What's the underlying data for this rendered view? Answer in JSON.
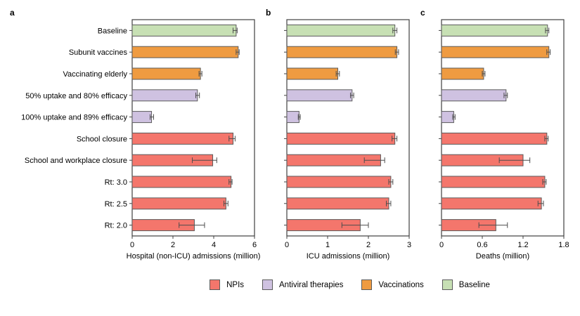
{
  "figure": {
    "background": "#ffffff",
    "axis_color": "#3f3f3f",
    "bar_border_color": "#5b5b5b",
    "error_bar_color": "#4d4d4d"
  },
  "legend": {
    "position": "bottom",
    "items": [
      {
        "label": "NPIs",
        "group": "npi",
        "color": "#F4766C"
      },
      {
        "label": "Antiviral therapies",
        "group": "antiviral",
        "color": "#CFC2E1"
      },
      {
        "label": "Vaccinations",
        "group": "vaccination",
        "color": "#EF9B41"
      },
      {
        "label": "Baseline",
        "group": "baseline",
        "color": "#C7E0B4"
      }
    ]
  },
  "chart_data": [
    {
      "panel_label": "a",
      "type": "bar",
      "orientation": "horizontal",
      "title": "",
      "xlabel": "Hospital (non-ICU) admissions (million)",
      "xlim": [
        0,
        6
      ],
      "xticks": [
        "0",
        "2",
        "4",
        "6"
      ],
      "grid": false,
      "show_category_labels": true,
      "categories": [
        "Baseline",
        "Subunit vaccines",
        "Vaccinating elderly",
        "50% uptake and 80% efficacy",
        "100% uptake and 89% efficacy",
        "School closure",
        "School and workplace closure",
        "Rt: 3.0",
        "Rt: 2.5",
        "Rt: 2.0"
      ],
      "groups": [
        "baseline",
        "vaccination",
        "vaccination",
        "antiviral",
        "antiviral",
        "npi",
        "npi",
        "npi",
        "npi",
        "npi"
      ],
      "values": [
        5.1,
        5.2,
        3.35,
        3.2,
        0.95,
        4.95,
        3.95,
        4.85,
        4.6,
        3.05
      ],
      "error_low": [
        4.95,
        5.1,
        3.28,
        3.12,
        0.88,
        4.75,
        2.95,
        4.75,
        4.5,
        2.3
      ],
      "error_high": [
        5.15,
        5.25,
        3.42,
        3.3,
        1.05,
        5.05,
        4.15,
        4.9,
        4.7,
        3.55
      ]
    },
    {
      "panel_label": "b",
      "type": "bar",
      "orientation": "horizontal",
      "title": "",
      "xlabel": "ICU admissions (million)",
      "xlim": [
        0,
        3
      ],
      "xticks": [
        "0",
        "1",
        "2",
        "3"
      ],
      "grid": false,
      "show_category_labels": false,
      "categories": [
        "Baseline",
        "Subunit vaccines",
        "Vaccinating elderly",
        "50% uptake and 80% efficacy",
        "100% uptake and 89% efficacy",
        "School closure",
        "School and workplace closure",
        "Rt: 3.0",
        "Rt: 2.5",
        "Rt: 2.0"
      ],
      "groups": [
        "baseline",
        "vaccination",
        "vaccination",
        "antiviral",
        "antiviral",
        "npi",
        "npi",
        "npi",
        "npi",
        "npi"
      ],
      "values": [
        2.65,
        2.7,
        1.25,
        1.6,
        0.3,
        2.65,
        2.3,
        2.55,
        2.5,
        1.8
      ],
      "error_low": [
        2.6,
        2.66,
        1.21,
        1.56,
        0.28,
        2.58,
        1.9,
        2.5,
        2.44,
        1.35
      ],
      "error_high": [
        2.7,
        2.74,
        1.29,
        1.64,
        0.33,
        2.7,
        2.4,
        2.6,
        2.55,
        2.0
      ]
    },
    {
      "panel_label": "c",
      "type": "bar",
      "orientation": "horizontal",
      "title": "",
      "xlabel": "Deaths (million)",
      "xlim": [
        0,
        1.8
      ],
      "xticks": [
        "0",
        "0.6",
        "1.2",
        "1.8"
      ],
      "grid": false,
      "show_category_labels": false,
      "categories": [
        "Baseline",
        "Subunit vaccines",
        "Vaccinating elderly",
        "50% uptake and 80% efficacy",
        "100% uptake and 89% efficacy",
        "School closure",
        "School and workplace closure",
        "Rt: 3.0",
        "Rt: 2.5",
        "Rt: 2.0"
      ],
      "groups": [
        "baseline",
        "vaccination",
        "vaccination",
        "antiviral",
        "antiviral",
        "npi",
        "npi",
        "npi",
        "npi",
        "npi"
      ],
      "values": [
        1.56,
        1.58,
        0.62,
        0.95,
        0.18,
        1.55,
        1.2,
        1.52,
        1.47,
        0.8
      ],
      "error_low": [
        1.53,
        1.55,
        0.6,
        0.92,
        0.165,
        1.52,
        0.85,
        1.49,
        1.42,
        0.55
      ],
      "error_high": [
        1.58,
        1.6,
        0.64,
        0.97,
        0.2,
        1.57,
        1.3,
        1.54,
        1.5,
        0.97
      ]
    }
  ]
}
